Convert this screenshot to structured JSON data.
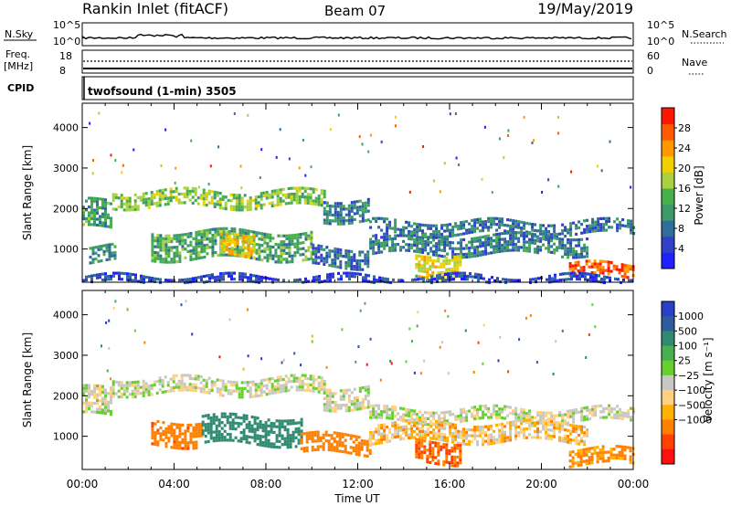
{
  "header": {
    "station": "Rankin Inlet (fitACF)",
    "beam": "Beam 07",
    "date": "19/May/2019"
  },
  "strip": {
    "nsky_label": "N.Sky",
    "nsky_ticks": [
      "10^5",
      "10^0"
    ],
    "nsearch_label": "N.Search",
    "nsearch_ticks": [
      "10^5",
      "10^0"
    ],
    "freq_label": "Freq.",
    "freq_unit": "[MHz]",
    "freq_ticks": [
      "18",
      "8"
    ],
    "nave_label": "Nave",
    "nave_ticks": [
      "60",
      "0"
    ],
    "cpid_label": "CPID",
    "cpid_text": "twofsound (1-min) 3505"
  },
  "chart_data": [
    {
      "type": "heatmap",
      "name": "power",
      "ylabel": "Slant Range [km]",
      "ylim": [
        180,
        4600
      ],
      "yticks": [
        1000,
        2000,
        3000,
        4000
      ],
      "xlim": [
        0,
        24
      ],
      "colorbar": {
        "label": "Power [dB]",
        "range": [
          0,
          32
        ],
        "ticks": [
          4,
          8,
          12,
          16,
          20,
          24,
          28
        ],
        "colors": [
          "#1f1fff",
          "#3240c8",
          "#2f6e9a",
          "#3c9a6a",
          "#48b048",
          "#a8d040",
          "#f0d000",
          "#ff9900",
          "#ff5a00",
          "#ff1500"
        ]
      },
      "bands": [
        {
          "x": [
            0.0,
            1.3
          ],
          "r": [
            1500,
            2200
          ],
          "v": 12
        },
        {
          "x": [
            1.3,
            10.5
          ],
          "r": [
            2050,
            2450
          ],
          "v": 16
        },
        {
          "x": [
            10.5,
            12.5
          ],
          "r": [
            1700,
            2250
          ],
          "v": 9
        },
        {
          "x": [
            12.5,
            24.0
          ],
          "r": [
            1350,
            1700
          ],
          "v": 8
        },
        {
          "x": [
            0.3,
            1.4
          ],
          "r": [
            700,
            1100
          ],
          "v": 11
        },
        {
          "x": [
            3.0,
            10.0
          ],
          "r": [
            800,
            1450
          ],
          "v": 13
        },
        {
          "x": [
            6.0,
            7.5
          ],
          "r": [
            850,
            1400
          ],
          "v": 21
        },
        {
          "x": [
            10.0,
            12.5
          ],
          "r": [
            600,
            1050
          ],
          "v": 8
        },
        {
          "x": [
            12.5,
            22.0
          ],
          "r": [
            850,
            1350
          ],
          "v": 9
        },
        {
          "x": [
            14.5,
            16.5
          ],
          "r": [
            350,
            900
          ],
          "v": 20
        },
        {
          "x": [
            21.2,
            24.0
          ],
          "r": [
            350,
            650
          ],
          "v": 27
        },
        {
          "x": [
            0.0,
            24.0
          ],
          "r": [
            200,
            350
          ],
          "v": 5
        }
      ]
    },
    {
      "type": "heatmap",
      "name": "velocity",
      "xlabel": "Time UT",
      "ylabel": "Slant Range [km]",
      "ylim": [
        180,
        4600
      ],
      "yticks": [
        1000,
        2000,
        3000,
        4000
      ],
      "xlim": [
        0,
        24
      ],
      "xticks": [
        "00:00",
        "04:00",
        "08:00",
        "12:00",
        "16:00",
        "20:00",
        "00:00"
      ],
      "colorbar": {
        "label": "Velocity [m s⁻¹]",
        "ticks": [
          "1000",
          "500",
          "100",
          "25",
          "−25",
          "−100",
          "−500",
          "−1000"
        ],
        "colors": [
          "#2a3fc8",
          "#2f5aa0",
          "#2f8a70",
          "#48b050",
          "#66d030",
          "#c8c8c0",
          "#ffd080",
          "#ffb000",
          "#ff8000",
          "#ff4000",
          "#ff1010"
        ]
      },
      "bands": [
        {
          "x": [
            0.0,
            1.3
          ],
          "r": [
            1500,
            2200
          ],
          "v": 0
        },
        {
          "x": [
            1.3,
            10.5
          ],
          "r": [
            2050,
            2450
          ],
          "v": 0
        },
        {
          "x": [
            10.5,
            12.5
          ],
          "r": [
            1700,
            2250
          ],
          "v": 0
        },
        {
          "x": [
            12.5,
            24.0
          ],
          "r": [
            1350,
            1700
          ],
          "v": 0
        },
        {
          "x": [
            3.0,
            5.2
          ],
          "r": [
            800,
            1400
          ],
          "v": -250
        },
        {
          "x": [
            5.2,
            9.5
          ],
          "r": [
            850,
            1500
          ],
          "v": 200
        },
        {
          "x": [
            9.5,
            12.5
          ],
          "r": [
            600,
            1050
          ],
          "v": -200
        },
        {
          "x": [
            12.5,
            22.0
          ],
          "r": [
            850,
            1350
          ],
          "v": -60
        },
        {
          "x": [
            14.5,
            16.5
          ],
          "r": [
            350,
            900
          ],
          "v": -300
        },
        {
          "x": [
            21.2,
            24.0
          ],
          "r": [
            300,
            700
          ],
          "v": -120
        }
      ]
    }
  ]
}
